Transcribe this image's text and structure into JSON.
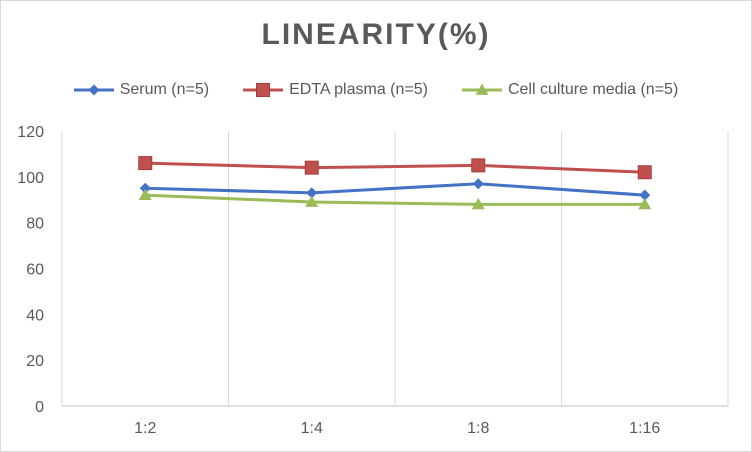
{
  "chart_data": {
    "type": "line",
    "title": "LINEARITY(%)",
    "categories": [
      "1:2",
      "1:4",
      "1:8",
      "1:16"
    ],
    "series": [
      {
        "name": "Serum (n=5)",
        "values": [
          95,
          93,
          97,
          92
        ],
        "color": "#4472c4",
        "marker": "diamond"
      },
      {
        "name": "EDTA plasma (n=5)",
        "values": [
          106,
          104,
          105,
          102
        ],
        "color": "#c0504d",
        "marker": "square"
      },
      {
        "name": "Cell culture media (n=5)",
        "values": [
          92,
          89,
          88,
          88
        ],
        "color": "#9bbb59",
        "marker": "triangle"
      }
    ],
    "ylim": [
      0,
      120
    ],
    "yticks": [
      0,
      20,
      40,
      60,
      80,
      100,
      120
    ],
    "xlabel": "",
    "ylabel": "",
    "grid": "vertical-category-lines",
    "legend_position": "top"
  }
}
